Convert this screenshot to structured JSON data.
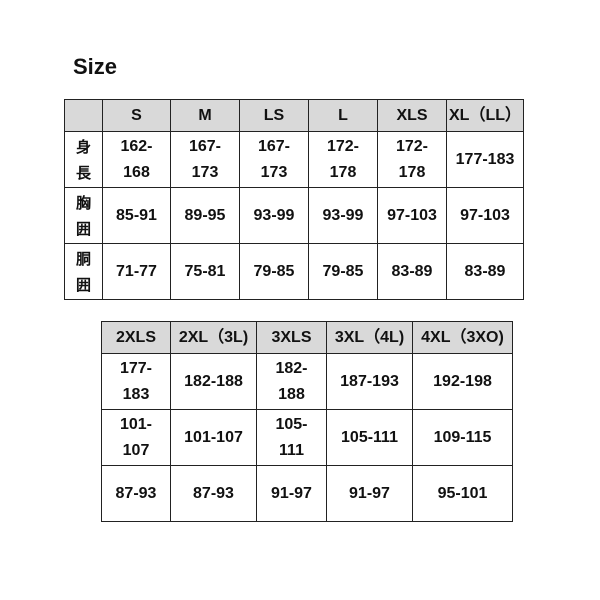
{
  "title": "Size",
  "table1": {
    "headers": [
      "",
      "S",
      "M",
      "LS",
      "L",
      "XLS",
      "XL（LL）"
    ],
    "rows": [
      {
        "label": "身\n長",
        "values": [
          "162-\n168",
          "167-\n173",
          "167-\n173",
          "172-\n178",
          "172-\n178",
          "177-183"
        ]
      },
      {
        "label": "胸\n囲",
        "values": [
          "85-91",
          "89-95",
          "93-99",
          "93-99",
          "97-103",
          "97-103"
        ]
      },
      {
        "label": "胴\n囲",
        "values": [
          "71-77",
          "75-81",
          "79-85",
          "79-85",
          "83-89",
          "83-89"
        ]
      }
    ]
  },
  "table2": {
    "headers": [
      "2XLS",
      "2XL（3L)",
      "3XLS",
      "3XL（4L)",
      "4XL（3XO)"
    ],
    "rows": [
      {
        "values": [
          "177-\n183",
          "182-188",
          "182-\n188",
          "187-193",
          "192-198"
        ]
      },
      {
        "values": [
          "101-\n107",
          "101-107",
          "105-\n111",
          "105-111",
          "109-115"
        ]
      },
      {
        "values": [
          "87-93",
          "87-93",
          "91-97",
          "91-97",
          "95-101"
        ]
      }
    ]
  }
}
